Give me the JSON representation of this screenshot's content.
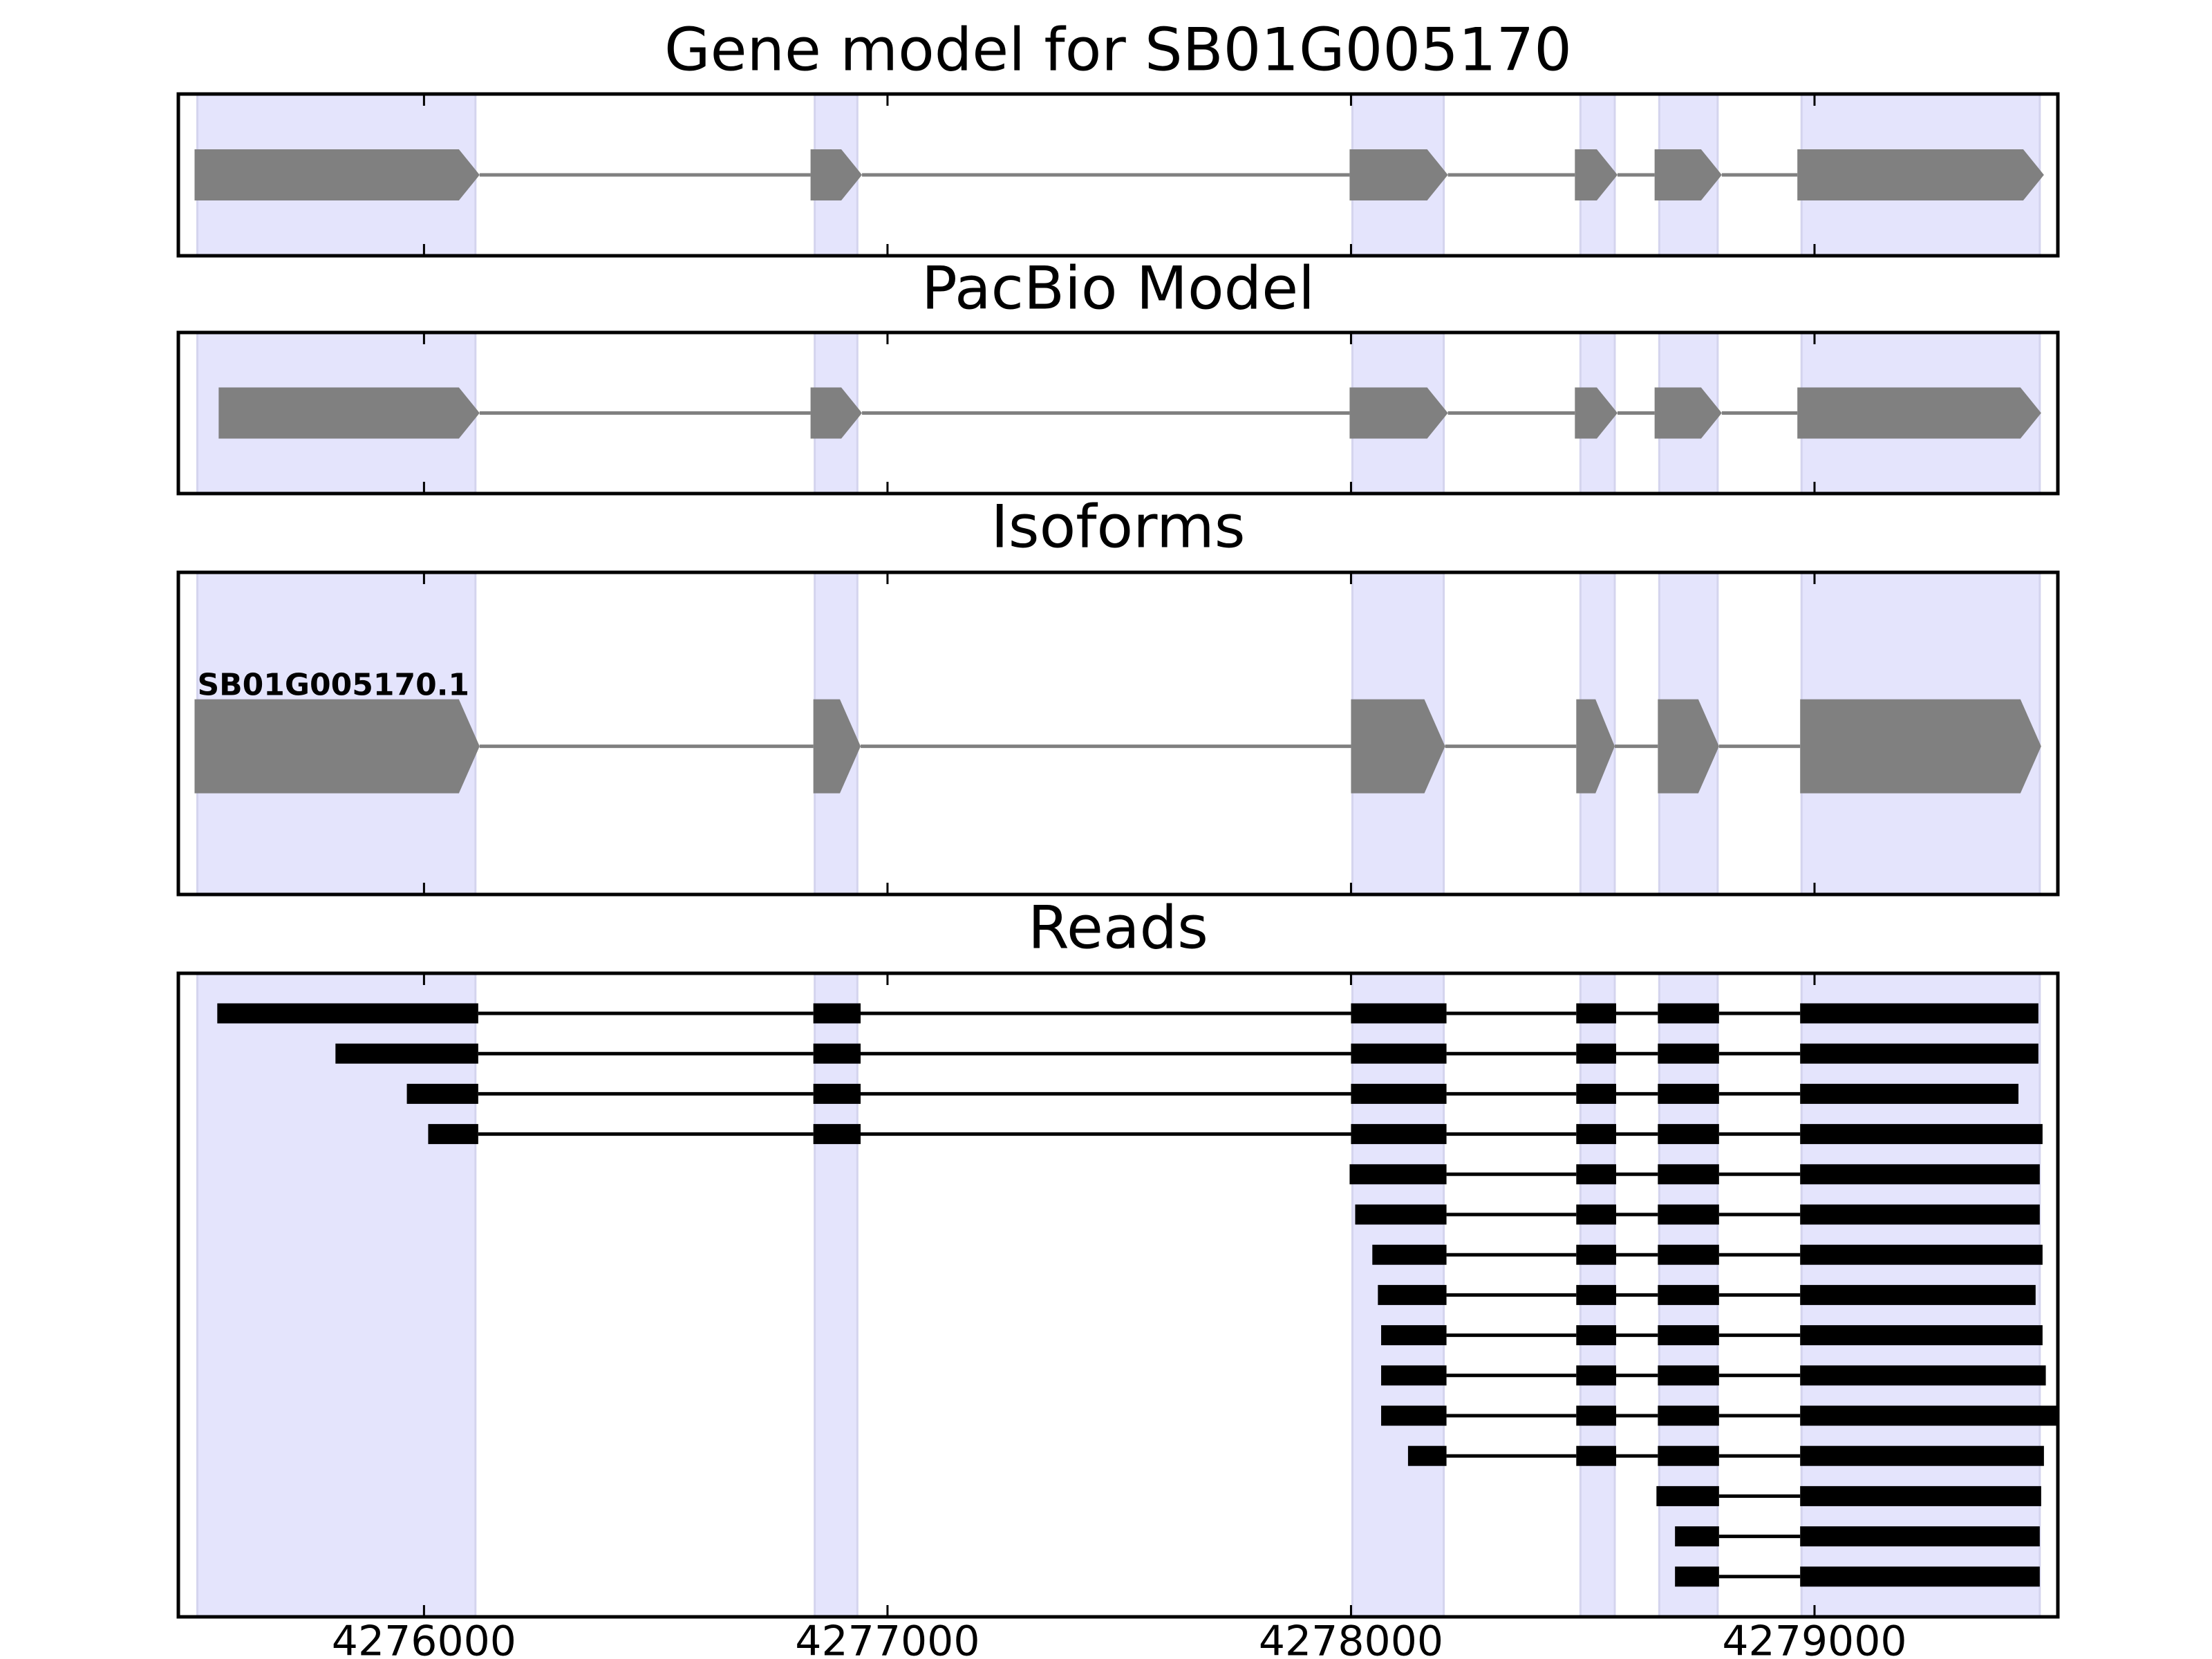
{
  "chart_data": {
    "type": "gene",
    "xlim": [
      4275470,
      4279525
    ],
    "xticks": [
      4276000,
      4277000,
      4278000,
      4279000
    ],
    "shade_color": "#e4e4fc",
    "exon_regions": [
      [
        4275511,
        4276111
      ],
      [
        4276843,
        4276935
      ],
      [
        4278003,
        4278200
      ],
      [
        4278495,
        4278569
      ],
      [
        4278665,
        4278791
      ],
      [
        4278972,
        4279486
      ]
    ],
    "panels": [
      {
        "title": "Gene model for SB01G005170",
        "color": "#808080",
        "exons": [
          [
            4275505,
            4276120
          ],
          [
            4276834,
            4276945
          ],
          [
            4277997,
            4278209
          ],
          [
            4278483,
            4278575
          ],
          [
            4278655,
            4278800
          ],
          [
            4278963,
            4279495
          ]
        ]
      },
      {
        "title": "PacBio Model",
        "color": "#808080",
        "exons": [
          [
            4275557,
            4276120
          ],
          [
            4276834,
            4276945
          ],
          [
            4277997,
            4278209
          ],
          [
            4278483,
            4278575
          ],
          [
            4278655,
            4278800
          ],
          [
            4278963,
            4279489
          ]
        ]
      },
      {
        "title": "Isoforms",
        "color": "#808080",
        "label": "SB01G005170.1",
        "exons": [
          [
            4275505,
            4276120
          ],
          [
            4276840,
            4276942
          ],
          [
            4278000,
            4278203
          ],
          [
            4278486,
            4278569
          ],
          [
            4278662,
            4278794
          ],
          [
            4278969,
            4279489
          ]
        ]
      },
      {
        "title": "Reads",
        "color": "#000000",
        "reads": [
          [
            [
              4275554,
              4276117
            ],
            [
              4276840,
              4276942
            ],
            [
              4278000,
              4278206
            ],
            [
              4278486,
              4278572
            ],
            [
              4278662,
              4278794
            ],
            [
              4278969,
              4279483
            ]
          ],
          [
            [
              4275809,
              4276117
            ],
            [
              4276840,
              4276942
            ],
            [
              4278000,
              4278206
            ],
            [
              4278486,
              4278572
            ],
            [
              4278662,
              4278794
            ],
            [
              4278969,
              4279483
            ]
          ],
          [
            [
              4275963,
              4276117
            ],
            [
              4276840,
              4276942
            ],
            [
              4278000,
              4278206
            ],
            [
              4278486,
              4278572
            ],
            [
              4278662,
              4278794
            ],
            [
              4278969,
              4279440
            ]
          ],
          [
            [
              4276009,
              4276117
            ],
            [
              4276840,
              4276942
            ],
            [
              4278000,
              4278206
            ],
            [
              4278486,
              4278572
            ],
            [
              4278662,
              4278794
            ],
            [
              4278969,
              4279492
            ]
          ],
          [
            [
              4277997,
              4278206
            ],
            [
              4278486,
              4278572
            ],
            [
              4278662,
              4278794
            ],
            [
              4278969,
              4279486
            ]
          ],
          [
            [
              4278009,
              4278206
            ],
            [
              4278486,
              4278572
            ],
            [
              4278662,
              4278794
            ],
            [
              4278969,
              4279486
            ]
          ],
          [
            [
              4278046,
              4278206
            ],
            [
              4278486,
              4278572
            ],
            [
              4278662,
              4278794
            ],
            [
              4278969,
              4279492
            ]
          ],
          [
            [
              4278058,
              4278206
            ],
            [
              4278486,
              4278572
            ],
            [
              4278662,
              4278794
            ],
            [
              4278969,
              4279477
            ]
          ],
          [
            [
              4278065,
              4278206
            ],
            [
              4278486,
              4278572
            ],
            [
              4278662,
              4278794
            ],
            [
              4278969,
              4279492
            ]
          ],
          [
            [
              4278065,
              4278206
            ],
            [
              4278486,
              4278572
            ],
            [
              4278662,
              4278794
            ],
            [
              4278969,
              4279499
            ]
          ],
          [
            [
              4278065,
              4278206
            ],
            [
              4278486,
              4278572
            ],
            [
              4278662,
              4278794
            ],
            [
              4278969,
              4279532
            ]
          ],
          [
            [
              4278123,
              4278206
            ],
            [
              4278486,
              4278572
            ],
            [
              4278662,
              4278794
            ],
            [
              4278969,
              4279495
            ]
          ],
          [
            [
              4278659,
              4278794
            ],
            [
              4278969,
              4279489
            ]
          ],
          [
            [
              4278699,
              4278794
            ],
            [
              4278969,
              4279486
            ]
          ],
          [
            [
              4278699,
              4278794
            ],
            [
              4278969,
              4279486
            ]
          ]
        ]
      }
    ]
  }
}
